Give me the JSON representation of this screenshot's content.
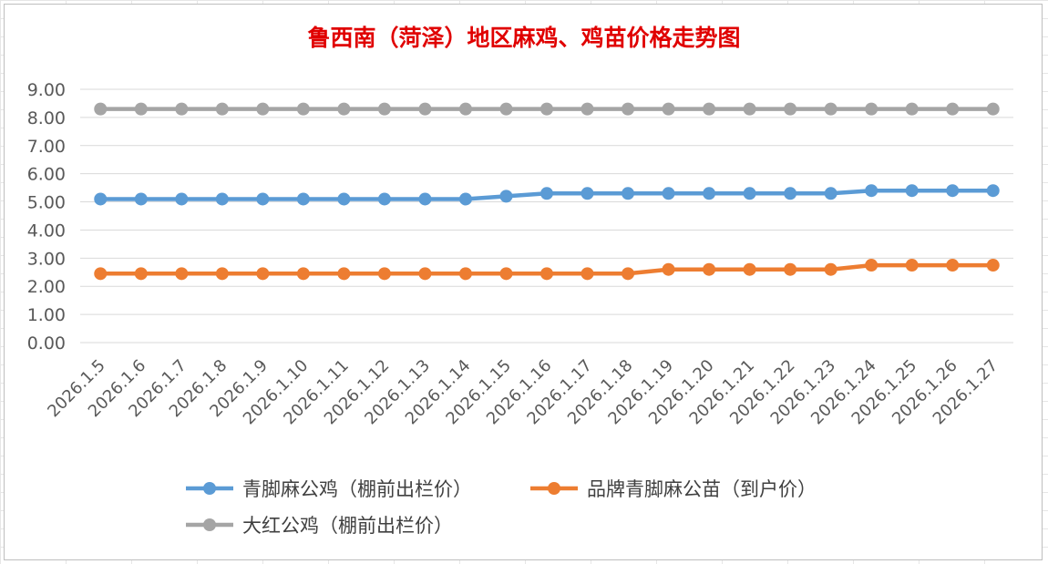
{
  "chart_data": {
    "type": "line",
    "title": "鲁西南（菏泽）地区麻鸡、鸡苗价格走势图",
    "categories": [
      "2026.1.5",
      "2026.1.6",
      "2026.1.7",
      "2026.1.8",
      "2026.1.9",
      "2026.1.10",
      "2026.1.11",
      "2026.1.12",
      "2026.1.13",
      "2026.1.14",
      "2026.1.15",
      "2026.1.16",
      "2026.1.17",
      "2026.1.18",
      "2026.1.19",
      "2026.1.20",
      "2026.1.21",
      "2026.1.22",
      "2026.1.23",
      "2026.1.24",
      "2026.1.25",
      "2026.1.26",
      "2026.1.27"
    ],
    "ylim": [
      0,
      9
    ],
    "yticks": [
      "0.00",
      "1.00",
      "2.00",
      "3.00",
      "4.00",
      "5.00",
      "6.00",
      "7.00",
      "8.00",
      "9.00"
    ],
    "grid": true,
    "legend_position": "bottom",
    "series": [
      {
        "name": "青脚麻公鸡（棚前出栏价）",
        "color": "#5b9bd5",
        "values": [
          5.1,
          5.1,
          5.1,
          5.1,
          5.1,
          5.1,
          5.1,
          5.1,
          5.1,
          5.1,
          5.2,
          5.3,
          5.3,
          5.3,
          5.3,
          5.3,
          5.3,
          5.3,
          5.3,
          5.4,
          5.4,
          5.4,
          5.4
        ]
      },
      {
        "name": "品牌青脚麻公苗（到户价）",
        "color": "#ed7d31",
        "values": [
          2.45,
          2.45,
          2.45,
          2.45,
          2.45,
          2.45,
          2.45,
          2.45,
          2.45,
          2.45,
          2.45,
          2.45,
          2.45,
          2.45,
          2.6,
          2.6,
          2.6,
          2.6,
          2.6,
          2.75,
          2.75,
          2.75,
          2.75
        ]
      },
      {
        "name": "大红公鸡（棚前出栏价）",
        "color": "#a5a5a5",
        "values": [
          8.3,
          8.3,
          8.3,
          8.3,
          8.3,
          8.3,
          8.3,
          8.3,
          8.3,
          8.3,
          8.3,
          8.3,
          8.3,
          8.3,
          8.3,
          8.3,
          8.3,
          8.3,
          8.3,
          8.3,
          8.3,
          8.3,
          8.3
        ]
      }
    ]
  }
}
